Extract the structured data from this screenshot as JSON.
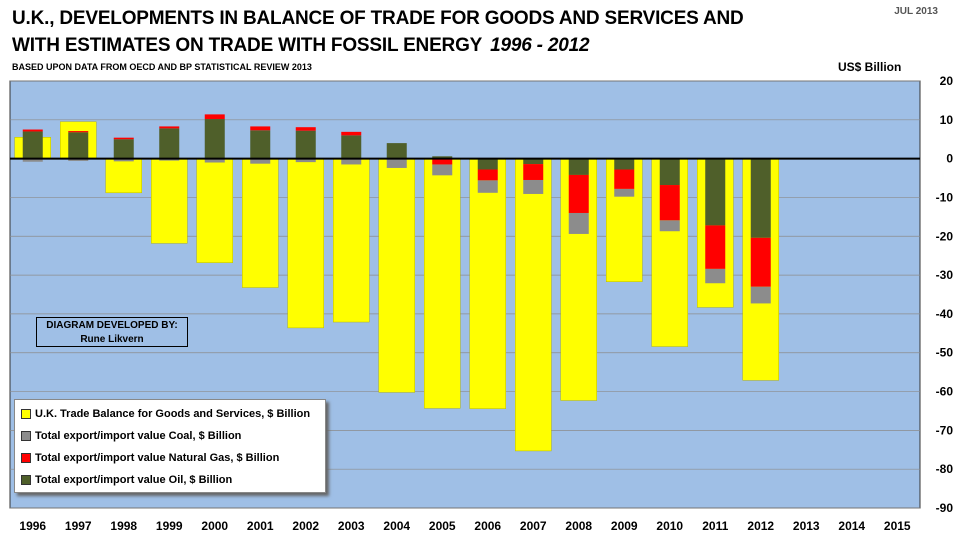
{
  "title_line1": "U.K., DEVELOPMENTS IN  BALANCE OF TRADE FOR GOODS AND SERVICES AND",
  "title_line2": "WITH ESTIMATES ON TRADE WITH FOSSIL ENERGY",
  "title_years": "1996 - 2012",
  "subtitle": "BASED UPON DATA FROM OECD AND BP STATISTICAL REVIEW 2013",
  "date": "JUL 2013",
  "unit": "US$ Billion",
  "credit_line1": "DIAGRAM DEVELOPED BY:",
  "credit_line2": "Rune Likvern",
  "colors": {
    "plot_background": "#9fbfe6",
    "trade_balance": "#ffff00",
    "coal": "#8c8c8c",
    "gas": "#ff0000",
    "oil": "#4f5f2a"
  },
  "chart_data": {
    "type": "bar",
    "categories": [
      "1996",
      "1997",
      "1998",
      "1999",
      "2000",
      "2001",
      "2002",
      "2003",
      "2004",
      "2005",
      "2006",
      "2007",
      "2008",
      "2009",
      "2010",
      "2011",
      "2012",
      "2013",
      "2014",
      "2015"
    ],
    "ylim": [
      -90,
      20
    ],
    "yticks": [
      20,
      10,
      0,
      -10,
      -20,
      -30,
      -40,
      -50,
      -60,
      -70,
      -80,
      -90
    ],
    "y_axis_side": "right",
    "grid": true,
    "legend_position": "bottom-left",
    "series": [
      {
        "name": "U.K. Trade Balance for Goods and Services, $ Billion",
        "color_key": "trade_balance",
        "values": [
          5.5,
          9.5,
          -8.8,
          -21.8,
          -26.8,
          -33.2,
          -43.6,
          -42.1,
          -60.2,
          -64.3,
          -64.4,
          -75.3,
          -62.3,
          -31.7,
          -48.4,
          -38.3,
          -57.1,
          null,
          null,
          null
        ]
      },
      {
        "name": "Total export/import value Coal, $ Billion",
        "color_key": "coal",
        "values": [
          -0.8,
          -0.6,
          -0.7,
          -0.5,
          -1.0,
          -1.3,
          -0.9,
          -1.5,
          -2.4,
          -2.8,
          -3.2,
          -3.6,
          -5.4,
          -2.0,
          -2.8,
          -3.7,
          -4.3,
          null,
          null,
          null
        ]
      },
      {
        "name": "Total export/import value Natural Gas, $ Billion",
        "color_key": "gas",
        "values": [
          0.5,
          0.3,
          0.4,
          0.5,
          1.2,
          1.0,
          0.9,
          0.9,
          0.0,
          -1.5,
          -2.8,
          -4.1,
          -9.8,
          -5.0,
          -9.1,
          -11.2,
          -12.6,
          null,
          null,
          null
        ]
      },
      {
        "name": "Total export/import value Oil, $ Billion",
        "color_key": "oil",
        "values": [
          7.0,
          6.8,
          5.0,
          7.8,
          10.2,
          7.3,
          7.2,
          6.0,
          4.0,
          0.6,
          -2.8,
          -1.4,
          -4.2,
          -2.8,
          -6.8,
          -17.2,
          -20.4,
          null,
          null,
          null
        ]
      }
    ]
  }
}
